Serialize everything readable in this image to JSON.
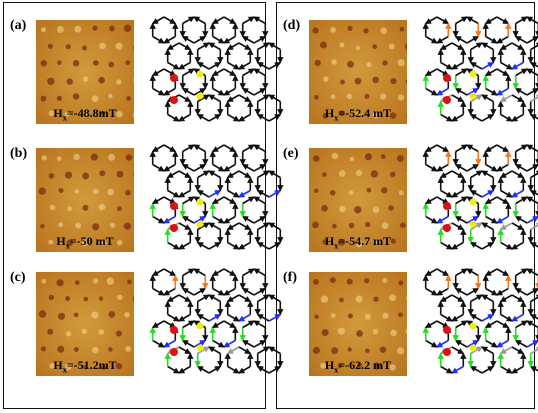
{
  "panels": [
    {
      "label": "(a)",
      "field_prefix": "H",
      "field_sub": "x",
      "field_value": "=-48.8mT"
    },
    {
      "label": "(b)",
      "field_prefix": "H",
      "field_sub": "x",
      "field_value": "=-50 mT"
    },
    {
      "label": "(c)",
      "field_prefix": "H",
      "field_sub": "x",
      "field_value": "=-51.2mT"
    },
    {
      "label": "(d)",
      "field_prefix": "H",
      "field_sub": "x",
      "field_value": "=-52.4 mT"
    },
    {
      "label": "(e)",
      "field_prefix": "H",
      "field_sub": "x",
      "field_value": "=-54.7 mT"
    },
    {
      "label": "(f)",
      "field_prefix": "H",
      "field_sub": "x",
      "field_value": "=-62.2 mT"
    }
  ],
  "colors": {
    "mfm_base": "#b8741f",
    "mfm_light": "#d29a3c",
    "mfm_dark": "#7a2e12",
    "spin_default": "#111111",
    "spin_gray": "#9a9a9a",
    "spin_blue": "#1f2fff",
    "spin_green": "#22dd22",
    "spin_orange": "#f07820",
    "charge_red": "#e01010",
    "charge_yellow": "#eeee10"
  }
}
